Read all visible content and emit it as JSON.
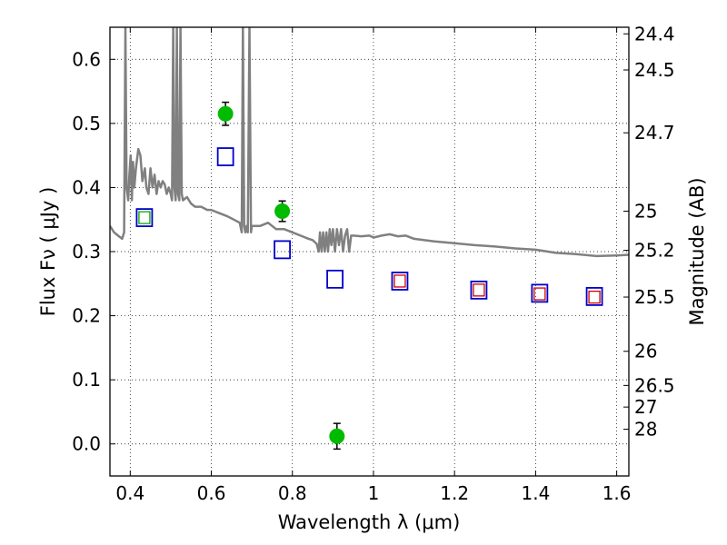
{
  "chart_data": {
    "type": "scatter",
    "xlabel": "Wavelength  λ (μm)",
    "ylabel": "Flux  Fν  ( μJy )",
    "y2label": "Magnitude (AB)",
    "xlim": [
      0.35,
      1.63
    ],
    "ylim": [
      -0.05,
      0.65
    ],
    "grid": true,
    "x_ticks": [
      0.4,
      0.6,
      0.8,
      1.0,
      1.2,
      1.4,
      1.6
    ],
    "x_tick_labels": [
      "0.4",
      "0.6",
      "0.8",
      "1",
      "1.2",
      "1.4",
      "1.6"
    ],
    "y_ticks": [
      0.0,
      0.1,
      0.2,
      0.3,
      0.4,
      0.5,
      0.6
    ],
    "y_tick_labels": [
      "0.0",
      "0.1",
      "0.2",
      "0.3",
      "0.4",
      "0.5",
      "0.6"
    ],
    "mag_ticks": [
      {
        "label": "24.4",
        "flux": 0.6397
      },
      {
        "label": "24.5",
        "flux": 0.5834
      },
      {
        "label": "24.7",
        "flux": 0.4853
      },
      {
        "label": "25",
        "flux": 0.3631
      },
      {
        "label": "25.2",
        "flux": 0.302
      },
      {
        "label": "25.5",
        "flux": 0.2291
      },
      {
        "label": "26",
        "flux": 0.1445
      },
      {
        "label": "26.5",
        "flux": 0.0912
      },
      {
        "label": "27",
        "flux": 0.0575
      },
      {
        "label": "28",
        "flux": 0.0229
      }
    ],
    "series": [
      {
        "marker": "circle",
        "color": "#00bb00",
        "points": [
          {
            "x": 0.635,
            "y": 0.515,
            "err": 0.018
          },
          {
            "x": 0.775,
            "y": 0.363,
            "err": 0.016
          },
          {
            "x": 0.91,
            "y": 0.012,
            "err": 0.02
          }
        ]
      },
      {
        "marker": "square-open",
        "color": "#0000cc",
        "points": [
          {
            "x": 0.435,
            "y": 0.353
          },
          {
            "x": 0.635,
            "y": 0.448
          },
          {
            "x": 0.775,
            "y": 0.303
          },
          {
            "x": 0.905,
            "y": 0.257
          },
          {
            "x": 1.065,
            "y": 0.254
          },
          {
            "x": 1.26,
            "y": 0.24
          },
          {
            "x": 1.41,
            "y": 0.235
          },
          {
            "x": 1.545,
            "y": 0.23
          }
        ]
      },
      {
        "marker": "square-open-small",
        "color": "#cc0000",
        "points": [
          {
            "x": 1.065,
            "y": 0.254
          },
          {
            "x": 1.26,
            "y": 0.24
          },
          {
            "x": 1.41,
            "y": 0.234
          },
          {
            "x": 1.545,
            "y": 0.229
          }
        ]
      },
      {
        "marker": "square-open-small",
        "color": "#00aa00",
        "points": [
          {
            "x": 0.435,
            "y": 0.353
          }
        ]
      },
      {
        "marker": "line",
        "color": "#808080",
        "points": [
          [
            0.35,
            0.34
          ],
          [
            0.36,
            0.33
          ],
          [
            0.37,
            0.325
          ],
          [
            0.38,
            0.32
          ],
          [
            0.385,
            0.33
          ],
          [
            0.388,
            0.65
          ],
          [
            0.391,
            0.4
          ],
          [
            0.395,
            0.38
          ],
          [
            0.398,
            0.42
          ],
          [
            0.401,
            0.45
          ],
          [
            0.404,
            0.38
          ],
          [
            0.407,
            0.44
          ],
          [
            0.41,
            0.4
          ],
          [
            0.414,
            0.43
          ],
          [
            0.42,
            0.46
          ],
          [
            0.425,
            0.45
          ],
          [
            0.43,
            0.41
          ],
          [
            0.436,
            0.43
          ],
          [
            0.44,
            0.4
          ],
          [
            0.445,
            0.39
          ],
          [
            0.45,
            0.43
          ],
          [
            0.455,
            0.4
          ],
          [
            0.46,
            0.42
          ],
          [
            0.465,
            0.39
          ],
          [
            0.47,
            0.41
          ],
          [
            0.475,
            0.4
          ],
          [
            0.48,
            0.41
          ],
          [
            0.485,
            0.405
          ],
          [
            0.49,
            0.39
          ],
          [
            0.495,
            0.4
          ],
          [
            0.5,
            0.39
          ],
          [
            0.503,
            0.38
          ],
          [
            0.506,
            0.65
          ],
          [
            0.509,
            0.4
          ],
          [
            0.512,
            0.38
          ],
          [
            0.515,
            0.65
          ],
          [
            0.518,
            0.39
          ],
          [
            0.521,
            0.38
          ],
          [
            0.524,
            0.65
          ],
          [
            0.527,
            0.39
          ],
          [
            0.53,
            0.38
          ],
          [
            0.54,
            0.385
          ],
          [
            0.55,
            0.375
          ],
          [
            0.56,
            0.37
          ],
          [
            0.575,
            0.37
          ],
          [
            0.59,
            0.365
          ],
          [
            0.6,
            0.365
          ],
          [
            0.62,
            0.36
          ],
          [
            0.64,
            0.355
          ],
          [
            0.655,
            0.35
          ],
          [
            0.67,
            0.345
          ],
          [
            0.675,
            0.33
          ],
          [
            0.678,
            0.65
          ],
          [
            0.681,
            0.34
          ],
          [
            0.684,
            0.33
          ],
          [
            0.687,
            0.34
          ],
          [
            0.69,
            0.33
          ],
          [
            0.694,
            0.65
          ],
          [
            0.698,
            0.33
          ],
          [
            0.7,
            0.34
          ],
          [
            0.72,
            0.34
          ],
          [
            0.74,
            0.345
          ],
          [
            0.76,
            0.335
          ],
          [
            0.78,
            0.335
          ],
          [
            0.8,
            0.33
          ],
          [
            0.82,
            0.325
          ],
          [
            0.84,
            0.32
          ],
          [
            0.85,
            0.318
          ],
          [
            0.86,
            0.312
          ],
          [
            0.865,
            0.3
          ],
          [
            0.868,
            0.33
          ],
          [
            0.872,
            0.3
          ],
          [
            0.876,
            0.33
          ],
          [
            0.88,
            0.3
          ],
          [
            0.884,
            0.33
          ],
          [
            0.888,
            0.3
          ],
          [
            0.892,
            0.335
          ],
          [
            0.896,
            0.31
          ],
          [
            0.9,
            0.335
          ],
          [
            0.905,
            0.3
          ],
          [
            0.91,
            0.335
          ],
          [
            0.915,
            0.31
          ],
          [
            0.92,
            0.335
          ],
          [
            0.925,
            0.3
          ],
          [
            0.93,
            0.325
          ],
          [
            0.935,
            0.335
          ],
          [
            0.94,
            0.3
          ],
          [
            0.945,
            0.325
          ],
          [
            0.95,
            0.325
          ],
          [
            0.97,
            0.324
          ],
          [
            0.99,
            0.325
          ],
          [
            1.0,
            0.322
          ],
          [
            1.02,
            0.325
          ],
          [
            1.04,
            0.327
          ],
          [
            1.06,
            0.324
          ],
          [
            1.08,
            0.325
          ],
          [
            1.1,
            0.32
          ],
          [
            1.15,
            0.316
          ],
          [
            1.2,
            0.313
          ],
          [
            1.25,
            0.31
          ],
          [
            1.3,
            0.308
          ],
          [
            1.35,
            0.305
          ],
          [
            1.4,
            0.303
          ],
          [
            1.45,
            0.298
          ],
          [
            1.5,
            0.296
          ],
          [
            1.55,
            0.293
          ],
          [
            1.6,
            0.294
          ],
          [
            1.63,
            0.295
          ]
        ]
      }
    ]
  }
}
